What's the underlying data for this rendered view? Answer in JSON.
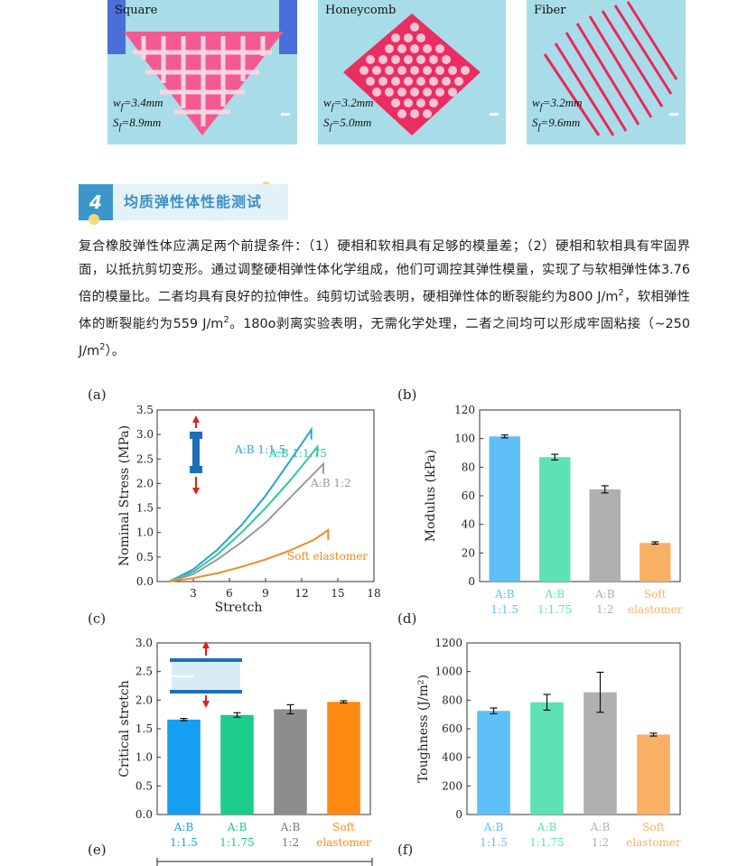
{
  "photos": [
    {
      "title": "Square",
      "wf": "3.4mm",
      "sf": "8.9mm"
    },
    {
      "title": "Honeycomb",
      "wf": "3.2mm",
      "sf": "5.0mm"
    },
    {
      "title": "Fiber",
      "wf": "3.2mm",
      "sf": "9.6mm"
    }
  ],
  "section": {
    "number": "4",
    "title": "均质弹性体性能测试"
  },
  "paragraph": {
    "p1": "复合橡胶弹性体应满足两个前提条件：（1）硬相和软相具有足够的模量差；（2）硬相和软相具有牢固界面，以抵抗剪切变形。通过调整硬相弹性体化学组成，他们可调控其弹性模量，实现了与软相弹性体3.76倍的模量比。二者均具有良好的拉伸性。纯剪切试验表明，硬相弹性体的断裂能约为800 J/m",
    "p2": "，软相弹性体的断裂能约为559 J/m",
    "p3": "。180o剥离实验表明，无需化学处理，二者之间均可以形成牢固粘接（~250 J/m",
    "p4": "）。",
    "sup": "2"
  },
  "panel_labels": {
    "a": "(a)",
    "b": "(b)",
    "c": "(c)",
    "d": "(d)",
    "e": "(e)",
    "f": "(f)"
  },
  "chart_data": [
    {
      "type": "line",
      "panel": "a",
      "xlabel": "Stretch",
      "ylabel": "Nominal Stress (MPa)",
      "xlim": [
        0,
        18
      ],
      "ylim": [
        0,
        3.5
      ],
      "xticks": [
        3,
        6,
        9,
        12,
        15,
        18
      ],
      "yticks": [
        0.0,
        0.5,
        1.0,
        1.5,
        2.0,
        2.5,
        3.0,
        3.5
      ],
      "series": [
        {
          "name": "A:B 1:1.5",
          "color": "#2aa3d6",
          "x": [
            1,
            3,
            5,
            7,
            9,
            11,
            12.8,
            12.8
          ],
          "y": [
            0,
            0.25,
            0.65,
            1.15,
            1.75,
            2.45,
            3.1,
            2.9
          ]
        },
        {
          "name": "A:B 1:1.75",
          "color": "#2ec99a",
          "x": [
            1,
            3,
            5,
            7,
            9,
            11,
            12.5,
            13.3,
            13.3
          ],
          "y": [
            0,
            0.2,
            0.55,
            1.0,
            1.5,
            2.05,
            2.5,
            2.75,
            2.55
          ]
        },
        {
          "name": "A:B 1:2",
          "color": "#9a9a9a",
          "x": [
            1,
            3,
            5,
            7,
            9,
            11,
            12.8,
            13.8,
            13.8
          ],
          "y": [
            0,
            0.15,
            0.45,
            0.8,
            1.2,
            1.7,
            2.15,
            2.4,
            2.2
          ]
        },
        {
          "name": "Soft elastomer",
          "color": "#f08a24",
          "x": [
            1,
            3,
            5,
            7,
            9,
            11,
            13,
            14.2,
            14.2
          ],
          "y": [
            0,
            0.07,
            0.17,
            0.3,
            0.45,
            0.63,
            0.85,
            1.05,
            0.85
          ]
        }
      ]
    },
    {
      "type": "bar",
      "panel": "b",
      "ylabel": "Modulus (kPa)",
      "ylim": [
        0,
        120
      ],
      "yticks": [
        0,
        20,
        40,
        60,
        80,
        100,
        120
      ],
      "categories": [
        "A:B 1:1.5",
        "A:B 1:1.75",
        "A:B 1:2",
        "Soft elastomer"
      ],
      "category_lines": [
        [
          "A:B",
          "1:1.5"
        ],
        [
          "A:B",
          "1:1.75"
        ],
        [
          "A:B",
          "1:2"
        ],
        [
          "Soft",
          "elastomer"
        ]
      ],
      "values": [
        101.5,
        87,
        64.5,
        27
      ],
      "errors": [
        1,
        2,
        2.5,
        0.8
      ],
      "colors": [
        "#5ec0f7",
        "#5de2b8",
        "#b0b0b0",
        "#f8b064"
      ]
    },
    {
      "type": "bar",
      "panel": "c",
      "ylabel": "Critical stretch",
      "ylim": [
        0,
        3.0
      ],
      "yticks": [
        0.0,
        0.5,
        1.0,
        1.5,
        2.0,
        2.5,
        3.0
      ],
      "categories": [
        "A:B 1:1.5",
        "A:B 1:1.75",
        "A:B 1:2",
        "Soft elastomer"
      ],
      "category_lines": [
        [
          "A:B",
          "1:1.5"
        ],
        [
          "A:B",
          "1:1.75"
        ],
        [
          "A:B",
          "1:2"
        ],
        [
          "Soft",
          "elastomer"
        ]
      ],
      "values": [
        1.66,
        1.74,
        1.84,
        1.97
      ],
      "errors": [
        0.02,
        0.04,
        0.08,
        0.02
      ],
      "colors": [
        "#159ff0",
        "#1ccc8a",
        "#8d8d8d",
        "#ff8a12"
      ]
    },
    {
      "type": "bar",
      "panel": "d",
      "ylabel": "Toughness (J/m²)",
      "ylim": [
        0,
        1200
      ],
      "yticks": [
        0,
        200,
        400,
        600,
        800,
        1000,
        1200
      ],
      "categories": [
        "A:B 1:1.5",
        "A:B 1:1.75",
        "A:B 1:2",
        "Soft elastomer"
      ],
      "category_lines": [
        [
          "A:B",
          "1:1.5"
        ],
        [
          "A:B",
          "1:1.75"
        ],
        [
          "A:B",
          "1:2"
        ],
        [
          "Soft",
          "elastomer"
        ]
      ],
      "values": [
        725,
        785,
        855,
        559
      ],
      "errors": [
        20,
        55,
        140,
        10
      ],
      "colors": [
        "#5ec0f7",
        "#5de2b8",
        "#b0b0b0",
        "#f8b064"
      ]
    }
  ]
}
